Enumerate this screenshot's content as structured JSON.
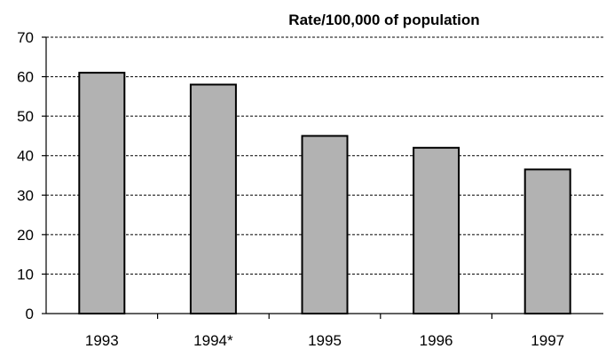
{
  "chart_data": {
    "type": "bar",
    "title": "Rate/100,000 of population",
    "xlabel": "",
    "ylabel": "",
    "categories": [
      "1993",
      "1994*",
      "1995",
      "1996",
      "1997"
    ],
    "values": [
      61,
      58,
      45,
      42,
      36.5
    ],
    "ylim": [
      0,
      70
    ],
    "yticks": [
      0,
      10,
      20,
      30,
      40,
      50,
      60,
      70
    ],
    "grid": true,
    "legend": "none",
    "bar_color": "#b2b2b2"
  }
}
